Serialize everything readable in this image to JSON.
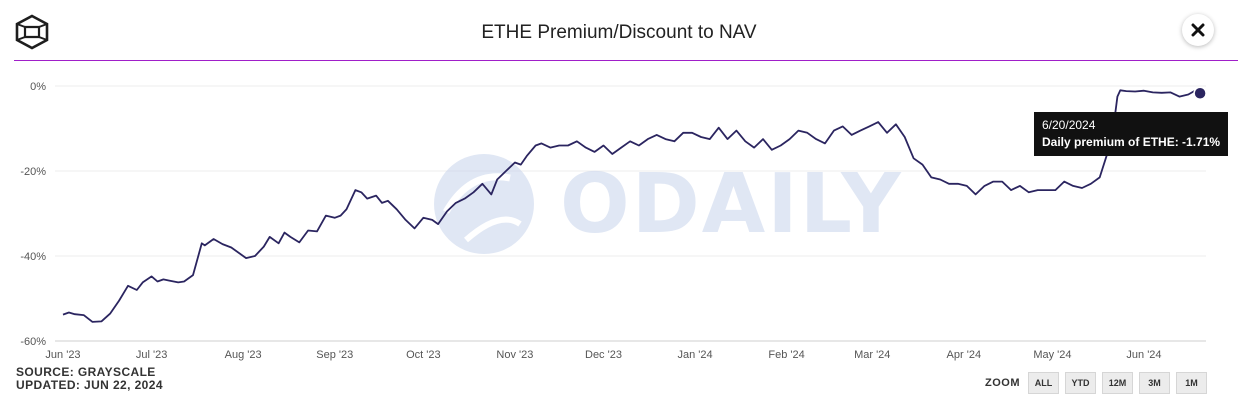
{
  "title": "ETHE Premium/Discount to NAV",
  "tooltip": {
    "date": "6/20/2024",
    "text": "Daily premium of ETHE: -1.71%"
  },
  "footer": {
    "source": "SOURCE: GRAYSCALE",
    "updated": "UPDATED: JUN 22, 2024"
  },
  "zoom": {
    "label": "ZOOM",
    "buttons": [
      "ALL",
      "YTD",
      "12M",
      "3M",
      "1M"
    ]
  },
  "watermark": "ODAILY",
  "colors": {
    "line": "#2b2560",
    "accent": "#a01fc9",
    "tooltip_bg": "#111111",
    "watermark": "#c8d4ec"
  },
  "icons": {
    "logo": "grayscale-logo-icon",
    "close": "close-icon"
  },
  "chart_data": {
    "type": "line",
    "title": "ETHE Premium/Discount to NAV",
    "xlabel": "",
    "ylabel": "",
    "y_ticks": [
      "0%",
      "-20%",
      "-40%",
      "-60%"
    ],
    "y_tick_values": [
      0,
      -20,
      -40,
      -60
    ],
    "ylim": [
      -60,
      0
    ],
    "x_ticks": [
      "Jun '23",
      "Jul '23",
      "Aug '23",
      "Sep '23",
      "Oct '23",
      "Nov '23",
      "Dec '23",
      "Jan '24",
      "Feb '24",
      "Mar '24",
      "Apr '24",
      "May '24",
      "Jun '24"
    ],
    "x_tick_dates": [
      "2023-06-01",
      "2023-07-01",
      "2023-08-01",
      "2023-09-01",
      "2023-10-01",
      "2023-11-01",
      "2023-12-01",
      "2024-01-01",
      "2024-02-01",
      "2024-03-01",
      "2024-04-01",
      "2024-05-01",
      "2024-06-01"
    ],
    "xlim": [
      "2023-06-01",
      "2024-06-22"
    ],
    "grid": true,
    "series": [
      {
        "x": [
          "2023-06-01",
          "2023-06-03",
          "2023-06-05",
          "2023-06-08",
          "2023-06-11",
          "2023-06-14",
          "2023-06-17",
          "2023-06-20",
          "2023-06-23",
          "2023-06-26",
          "2023-06-28",
          "2023-07-01",
          "2023-07-03",
          "2023-07-05",
          "2023-07-07",
          "2023-07-10",
          "2023-07-12",
          "2023-07-15",
          "2023-07-18",
          "2023-07-19",
          "2023-07-22",
          "2023-07-25",
          "2023-07-28",
          "2023-08-02",
          "2023-08-05",
          "2023-08-08",
          "2023-08-10",
          "2023-08-13",
          "2023-08-15",
          "2023-08-17",
          "2023-08-20",
          "2023-08-23",
          "2023-08-26",
          "2023-08-29",
          "2023-09-01",
          "2023-09-03",
          "2023-09-05",
          "2023-09-08",
          "2023-09-10",
          "2023-09-12",
          "2023-09-15",
          "2023-09-17",
          "2023-09-19",
          "2023-09-22",
          "2023-09-25",
          "2023-09-28",
          "2023-10-01",
          "2023-10-04",
          "2023-10-06",
          "2023-10-09",
          "2023-10-12",
          "2023-10-15",
          "2023-10-18",
          "2023-10-21",
          "2023-10-24",
          "2023-10-26",
          "2023-10-29",
          "2023-11-01",
          "2023-11-03",
          "2023-11-05",
          "2023-11-08",
          "2023-11-10",
          "2023-11-13",
          "2023-11-16",
          "2023-11-19",
          "2023-11-22",
          "2023-11-25",
          "2023-11-28",
          "2023-12-01",
          "2023-12-04",
          "2023-12-07",
          "2023-12-10",
          "2023-12-13",
          "2023-12-16",
          "2023-12-19",
          "2023-12-22",
          "2023-12-25",
          "2023-12-28",
          "2023-12-31",
          "2024-01-03",
          "2024-01-06",
          "2024-01-09",
          "2024-01-12",
          "2024-01-15",
          "2024-01-18",
          "2024-01-21",
          "2024-01-24",
          "2024-01-27",
          "2024-01-30",
          "2024-02-02",
          "2024-02-05",
          "2024-02-08",
          "2024-02-11",
          "2024-02-14",
          "2024-02-17",
          "2024-02-20",
          "2024-02-23",
          "2024-02-26",
          "2024-02-29",
          "2024-03-03",
          "2024-03-06",
          "2024-03-09",
          "2024-03-12",
          "2024-03-15",
          "2024-03-18",
          "2024-03-21",
          "2024-03-24",
          "2024-03-27",
          "2024-03-30",
          "2024-04-02",
          "2024-04-05",
          "2024-04-08",
          "2024-04-11",
          "2024-04-14",
          "2024-04-17",
          "2024-04-20",
          "2024-04-23",
          "2024-04-26",
          "2024-04-29",
          "2024-05-02",
          "2024-05-05",
          "2024-05-08",
          "2024-05-11",
          "2024-05-14",
          "2024-05-17",
          "2024-05-20",
          "2024-05-22",
          "2024-05-23",
          "2024-05-24",
          "2024-05-26",
          "2024-05-29",
          "2024-06-01",
          "2024-06-04",
          "2024-06-07",
          "2024-06-10",
          "2024-06-13",
          "2024-06-16",
          "2024-06-18",
          "2024-06-20"
        ],
        "y": [
          -53.8,
          -53.3,
          -53.7,
          -53.9,
          -55.5,
          -55.4,
          -53.5,
          -50.5,
          -47.0,
          -48.0,
          -46.2,
          -44.8,
          -46.0,
          -45.5,
          -45.8,
          -46.2,
          -46.0,
          -44.5,
          -37.0,
          -37.5,
          -36.0,
          -37.2,
          -38.0,
          -40.5,
          -40.0,
          -37.8,
          -35.5,
          -37.0,
          -34.5,
          -35.5,
          -36.8,
          -34.0,
          -34.2,
          -30.5,
          -31.0,
          -30.5,
          -29.0,
          -24.5,
          -25.0,
          -26.5,
          -25.8,
          -27.5,
          -27.0,
          -29.0,
          -31.5,
          -33.5,
          -31.0,
          -31.5,
          -32.5,
          -29.5,
          -27.5,
          -26.5,
          -25.0,
          -23.0,
          -25.5,
          -22.0,
          -20.0,
          -18.0,
          -18.5,
          -16.5,
          -14.0,
          -13.5,
          -14.5,
          -14.0,
          -14.0,
          -13.0,
          -14.5,
          -15.5,
          -14.0,
          -16.0,
          -14.5,
          -13.0,
          -14.0,
          -12.5,
          -11.5,
          -12.5,
          -13.0,
          -11.0,
          -11.0,
          -12.0,
          -12.5,
          -9.8,
          -12.5,
          -10.5,
          -13.0,
          -14.5,
          -12.5,
          -15.0,
          -14.0,
          -12.5,
          -10.5,
          -11.0,
          -12.5,
          -13.5,
          -10.5,
          -9.5,
          -11.5,
          -10.5,
          -9.5,
          -8.5,
          -11.0,
          -9.0,
          -12.0,
          -17.0,
          -18.5,
          -21.5,
          -22.0,
          -23.0,
          -23.0,
          -23.5,
          -25.5,
          -23.5,
          -22.5,
          -22.5,
          -24.5,
          -23.5,
          -25.0,
          -24.5,
          -24.5,
          -24.5,
          -22.5,
          -23.5,
          -24.0,
          -23.0,
          -21.5,
          -15.0,
          -8.0,
          -2.5,
          -1.0,
          -1.2,
          -1.3,
          -1.1,
          -1.5,
          -1.6,
          -1.5,
          -2.5,
          -2.0,
          -1.2,
          -1.71
        ]
      }
    ],
    "highlight": {
      "x": "2024-06-20",
      "y": -1.71
    }
  }
}
